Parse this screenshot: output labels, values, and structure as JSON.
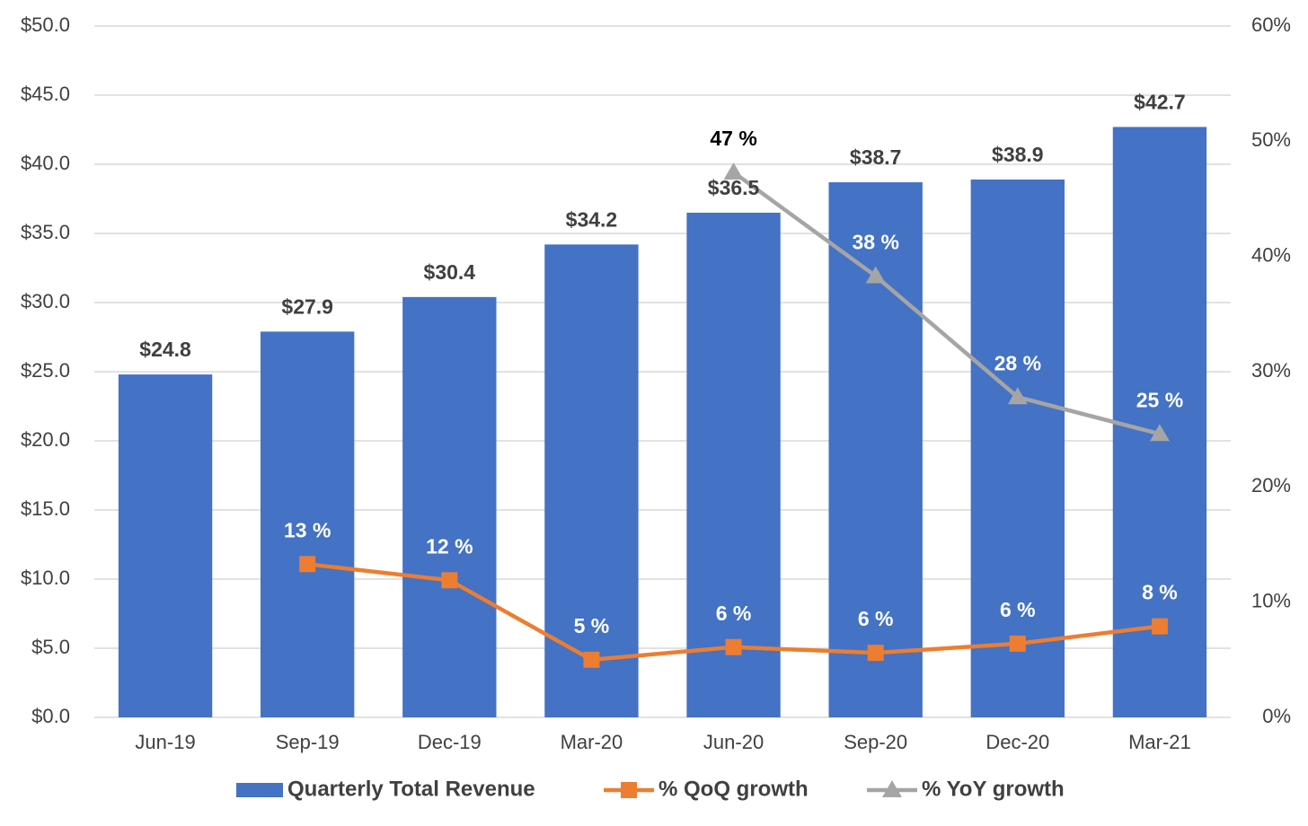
{
  "chart_data": {
    "type": "bar",
    "categories": [
      "Jun-19",
      "Sep-19",
      "Dec-19",
      "Mar-20",
      "Jun-20",
      "Sep-20",
      "Dec-20",
      "Mar-21"
    ],
    "series": [
      {
        "name": "Quarterly Total Revenue",
        "type": "bar",
        "color": "#4472c4",
        "values": [
          24.8,
          27.9,
          30.4,
          34.2,
          36.5,
          38.7,
          38.9,
          42.7
        ],
        "value_labels": [
          "$24.8",
          "$27.9",
          "$30.4",
          "$34.2",
          "$36.5",
          "$38.7",
          "$38.9",
          "$42.7"
        ]
      },
      {
        "name": "% QoQ growth",
        "type": "line",
        "axis": "y2",
        "color": "#ed7d31",
        "marker": "square",
        "values": [
          null,
          13.3,
          11.9,
          5.0,
          6.1,
          5.6,
          6.4,
          7.9
        ],
        "value_labels": [
          null,
          "13 %",
          "12 %",
          "5 %",
          "6 %",
          "6 %",
          "6 %",
          "8 %"
        ]
      },
      {
        "name": "% YoY growth",
        "type": "line",
        "axis": "y2",
        "color": "#a5a5a5",
        "marker": "triangle",
        "values": [
          null,
          null,
          null,
          null,
          47.3,
          38.3,
          27.8,
          24.6
        ],
        "value_labels": [
          null,
          null,
          null,
          null,
          "47 %",
          "38 %",
          "28 %",
          "25 %"
        ]
      }
    ],
    "ylim": [
      0,
      50
    ],
    "yticks": [
      {
        "value": 0,
        "label": "$0.0"
      },
      {
        "value": 5,
        "label": "$5.0"
      },
      {
        "value": 10,
        "label": "$10.0"
      },
      {
        "value": 15,
        "label": "$15.0"
      },
      {
        "value": 20,
        "label": "$20.0"
      },
      {
        "value": 25,
        "label": "$25.0"
      },
      {
        "value": 30,
        "label": "$30.0"
      },
      {
        "value": 35,
        "label": "$35.0"
      },
      {
        "value": 40,
        "label": "$40.0"
      },
      {
        "value": 45,
        "label": "$45.0"
      },
      {
        "value": 50,
        "label": "$50.0"
      }
    ],
    "y2lim": [
      0,
      60
    ],
    "y2ticks": [
      {
        "value": 0,
        "label": "0%"
      },
      {
        "value": 10,
        "label": "10%"
      },
      {
        "value": 20,
        "label": "20%"
      },
      {
        "value": 30,
        "label": "30%"
      },
      {
        "value": 40,
        "label": "40%"
      },
      {
        "value": 50,
        "label": "50%"
      },
      {
        "value": 60,
        "label": "60%"
      }
    ],
    "grid": true,
    "legend": "bottom"
  }
}
